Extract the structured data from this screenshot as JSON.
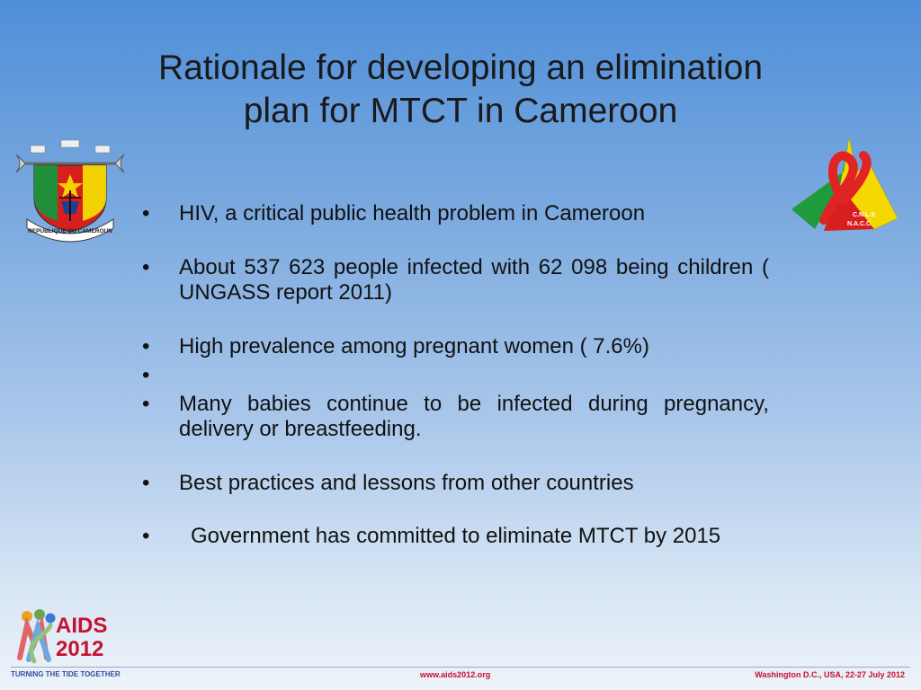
{
  "title": {
    "line1": "Rationale for developing an elimination",
    "line2": "plan for MTCT in Cameroon"
  },
  "bullets": [
    "HIV, a critical public health problem in Cameroon",
    "About 537 623 people infected with 62 098 being children ( UNGASS report 2011)",
    "High prevalence among pregnant women ( 7.6%)",
    "",
    "Many babies continue to be infected during pregnancy, delivery or breastfeeding.",
    "Best practices and lessons from other  countries",
    "Government has  committed to eliminate MTCT by 2015"
  ],
  "logos": {
    "crest_banner": "REPUBLIQUE DU CAMEROUN",
    "cnls_lines": [
      "C.N.L.S",
      "N.A.C.C."
    ],
    "aids_year_line1": "AIDS",
    "aids_year_line2": "2012",
    "aids_tagline": "TURNING THE TIDE TOGETHER"
  },
  "footer": {
    "url": "www.aids2012.org",
    "event": "Washington D.C., USA, 22-27 July 2012"
  },
  "colors": {
    "accent_red": "#c8102e",
    "cameroon_green": "#2e9e3f",
    "cameroon_yellow": "#f5d800"
  }
}
